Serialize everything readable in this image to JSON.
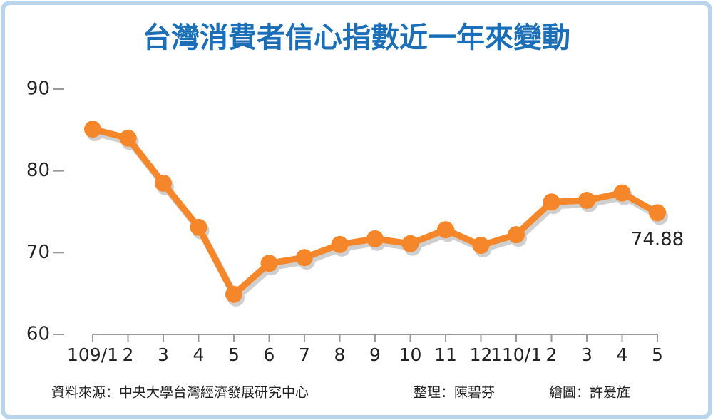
{
  "chart_data": {
    "type": "line",
    "title": "台灣消費者信心指數近一年來變動",
    "categories": [
      "109/1",
      "2",
      "3",
      "4",
      "5",
      "6",
      "7",
      "8",
      "9",
      "10",
      "11",
      "12",
      "110/1",
      "2",
      "3",
      "4",
      "5"
    ],
    "series": [
      {
        "name": "消費者信心指數",
        "color": "#f5862a",
        "values": [
          85.1,
          84.0,
          78.5,
          73.1,
          64.9,
          68.7,
          69.4,
          71.0,
          71.7,
          71.1,
          72.8,
          70.9,
          72.2,
          76.2,
          76.4,
          77.3,
          74.88
        ]
      }
    ],
    "annotation": "74.88",
    "ylim": [
      60,
      90
    ],
    "yticks": [
      60,
      70,
      80,
      90
    ],
    "source": "資料來源：中央大學台灣經濟發展研究中心",
    "editor": "整理：陳碧芬",
    "illustrator": "繪圖：許爰旌"
  }
}
